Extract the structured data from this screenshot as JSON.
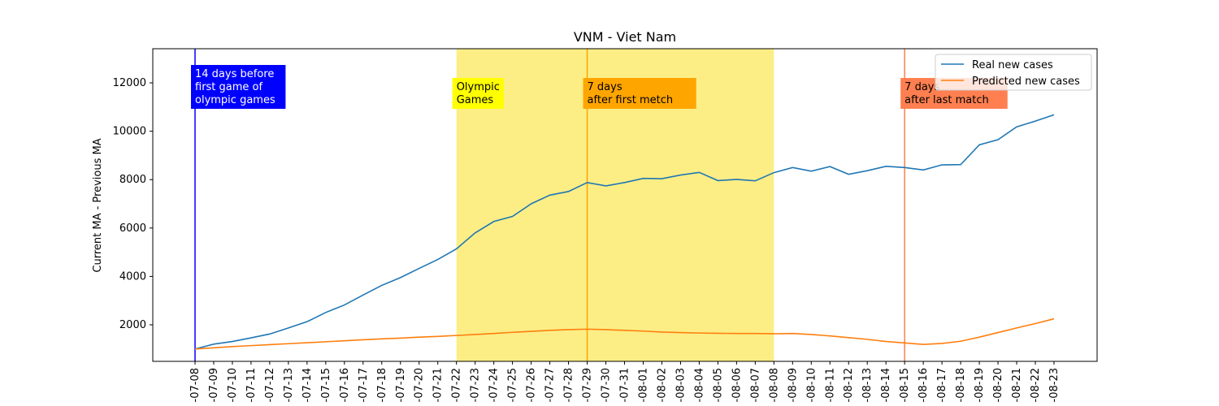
{
  "chart_data": {
    "type": "line",
    "title": "VNM - Viet Nam",
    "y_label": "Current MA - Previous MA",
    "categories": [
      "-07-08",
      "-07-09",
      "-07-10",
      "-07-11",
      "-07-12",
      "-07-13",
      "-07-14",
      "-07-15",
      "-07-16",
      "-07-17",
      "-07-18",
      "-07-19",
      "-07-20",
      "-07-21",
      "-07-22",
      "-07-23",
      "-07-24",
      "-07-25",
      "-07-26",
      "-07-27",
      "-07-28",
      "-07-29",
      "-07-30",
      "-07-31",
      "-08-01",
      "-08-02",
      "-08-03",
      "-08-04",
      "-08-05",
      "-08-06",
      "-08-07",
      "-08-08",
      "-08-09",
      "-08-10",
      "-08-11",
      "-08-12",
      "-08-13",
      "-08-14",
      "-08-15",
      "-08-16",
      "-08-17",
      "-08-18",
      "-08-19",
      "-08-20",
      "-08-21",
      "-08-22",
      "-08-23"
    ],
    "series": [
      {
        "name": "Real new cases",
        "color": "#1f77b4",
        "values": [
          1000,
          1200,
          1310,
          1460,
          1620,
          1870,
          2130,
          2510,
          2820,
          3230,
          3630,
          3950,
          4330,
          4700,
          5140,
          5800,
          6270,
          6480,
          7000,
          7360,
          7510,
          7880,
          7740,
          7880,
          8050,
          8040,
          8190,
          8300,
          7960,
          8010,
          7950,
          8290,
          8500,
          8350,
          8540,
          8220,
          8370,
          8550,
          8500,
          8400,
          8610,
          8620,
          9440,
          9650,
          10180,
          10420,
          10680
        ]
      },
      {
        "name": "Predicted new cases",
        "color": "#ff7f0e",
        "values": [
          1000,
          1050,
          1100,
          1140,
          1180,
          1220,
          1260,
          1300,
          1340,
          1380,
          1420,
          1450,
          1490,
          1520,
          1560,
          1600,
          1640,
          1690,
          1730,
          1770,
          1800,
          1820,
          1800,
          1770,
          1740,
          1700,
          1680,
          1660,
          1650,
          1640,
          1640,
          1630,
          1640,
          1600,
          1540,
          1470,
          1400,
          1310,
          1250,
          1190,
          1230,
          1320,
          1490,
          1680,
          1870,
          2050,
          2250
        ]
      }
    ],
    "ylim": [
      490,
      13410
    ],
    "yticks": [
      2000,
      4000,
      6000,
      8000,
      10000,
      12000
    ],
    "legend": "upper right",
    "span": {
      "start": "-07-22",
      "end": "-08-08",
      "color": "#fcee85",
      "lines": [
        "Olympic",
        "Games"
      ],
      "box_color": "#ffff00",
      "text_color": "#000000"
    },
    "annotations": [
      {
        "x": "-07-08",
        "color": "#0000ff",
        "lines": [
          "14 days before",
          "first game of",
          "olympic games"
        ],
        "box_color": "#0000ff",
        "text_color": "#ffffff"
      },
      {
        "x": "-07-29",
        "color": "#ffa500",
        "lines": [
          "7 days",
          "after first metch"
        ],
        "box_color": "#ffa500",
        "text_color": "#000000"
      },
      {
        "x": "-08-15",
        "color": "#ff7f50",
        "lines": [
          "7 days",
          "after last match"
        ],
        "box_color": "#ff7f50",
        "text_color": "#000000"
      }
    ]
  }
}
